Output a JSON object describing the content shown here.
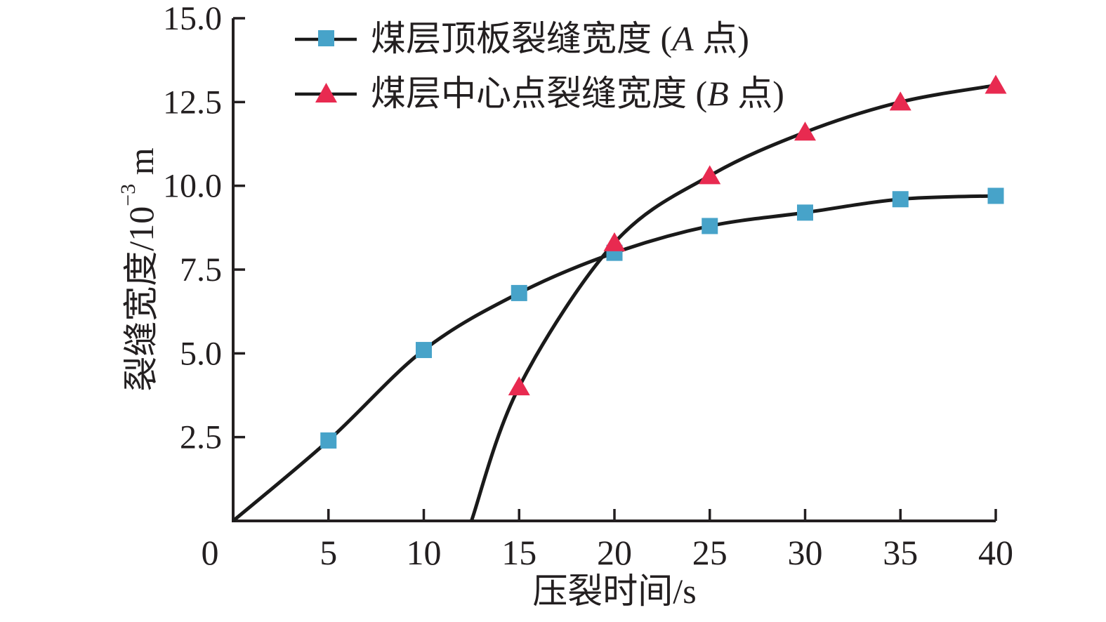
{
  "figure": {
    "kind": "scientific-line-chart",
    "background": "#ffffff"
  },
  "axes": {
    "y": {
      "label_base": "裂缝宽度/10",
      "label_sup": "−3",
      "label_unit": " m"
    },
    "x": {
      "label": "压裂时间/s"
    }
  },
  "legend": {
    "items": [
      {
        "pre": "煤层顶板裂缝宽度 (",
        "italic": "A",
        "post": " 点)"
      },
      {
        "pre": "煤层中心点裂缝宽度 (",
        "italic": "B",
        "post": " 点)"
      }
    ]
  },
  "chart_data": {
    "type": "line",
    "title": "",
    "xlabel": "压裂时间/s",
    "ylabel": "裂缝宽度/10⁻³ m",
    "xlim": [
      0,
      40
    ],
    "ylim": [
      0,
      15
    ],
    "grid": false,
    "legend_position": "top-left-inside",
    "x_ticks": [
      0,
      5,
      10,
      15,
      20,
      25,
      30,
      35,
      40
    ],
    "x_tick_labels": [
      "0",
      "5",
      "10",
      "15",
      "20",
      "25",
      "30",
      "35",
      "40"
    ],
    "y_ticks": [
      2.5,
      5.0,
      7.5,
      10.0,
      12.5,
      15.0
    ],
    "y_tick_labels": [
      "2.5",
      "5.0",
      "7.5",
      "10.0",
      "12.5",
      "15.0"
    ],
    "series": [
      {
        "name": "煤层顶板裂缝宽度 (A 点)",
        "marker": "square",
        "color": "#47a3c9",
        "curve_start": [
          0,
          0
        ],
        "x": [
          5,
          10,
          15,
          20,
          25,
          30,
          35,
          40
        ],
        "y": [
          2.4,
          5.1,
          6.8,
          8.0,
          8.8,
          9.2,
          9.6,
          9.7
        ]
      },
      {
        "name": "煤层中心点裂缝宽度 (B 点)",
        "marker": "triangle",
        "color": "#e82a50",
        "curve_start": [
          12.5,
          0
        ],
        "x": [
          15,
          20,
          25,
          30,
          35,
          40
        ],
        "y": [
          4.0,
          8.3,
          10.3,
          11.6,
          12.5,
          13.0
        ]
      }
    ],
    "line_color": "#1a1a1a",
    "axis_color": "#231f20",
    "text_color": "#231f20"
  }
}
